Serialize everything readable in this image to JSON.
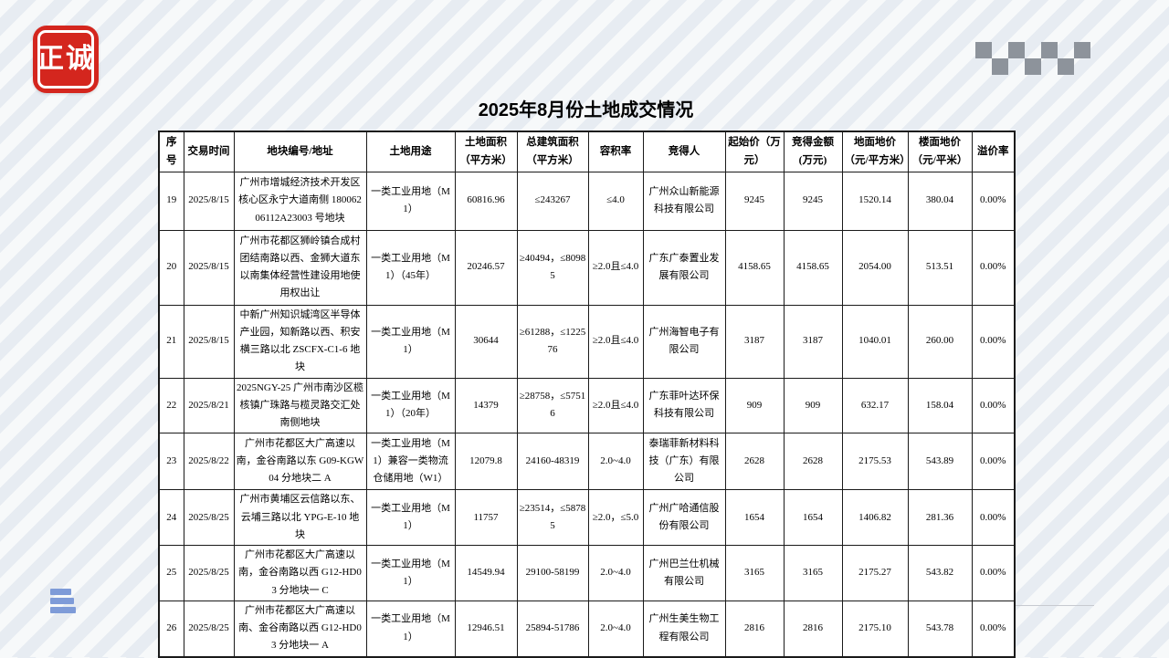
{
  "page": {
    "title": "2025年8月份土地成交情况"
  },
  "logo": {
    "text": "正诚",
    "color": "#d4261e"
  },
  "decor": {
    "checker_icon_color": "#8d939b",
    "hamburger_icon_color": "#7e9bd8"
  },
  "table": {
    "columns": [
      "序号",
      "交易时间",
      "地块编号/地址",
      "土地用途",
      "土地面积（平方米）",
      "总建筑面积（平方米）",
      "容积率",
      "竞得人",
      "起始价（万元）",
      "竞得金额(万元)",
      "地面地价（元/平方米）",
      "楼面地价（元/平米）",
      "溢价率"
    ],
    "rows": [
      [
        "19",
        "2025/8/15",
        "广州市增城经济技术开发区核心区永宁大道南侧 18006206112A23003 号地块",
        "一类工业用地（M1）",
        "60816.96",
        "≤243267",
        "≤4.0",
        "广州众山新能源科技有限公司",
        "9245",
        "9245",
        "1520.14",
        "380.04",
        "0.00%"
      ],
      [
        "20",
        "2025/8/15",
        "广州市花都区狮岭镇合成村团结南路以西、金狮大道东以南集体经营性建设用地使用权出让",
        "一类工业用地（M1）（45年）",
        "20246.57",
        "≥40494，≤80985",
        "≥2.0且≤4.0",
        "广东广泰置业发展有限公司",
        "4158.65",
        "4158.65",
        "2054.00",
        "513.51",
        "0.00%"
      ],
      [
        "21",
        "2025/8/15",
        "中新广州知识城湾区半导体产业园，知新路以西、积安横三路以北 ZSCFX-C1-6 地块",
        "一类工业用地（M1）",
        "30644",
        "≥61288，≤122576",
        "≥2.0且≤4.0",
        "广州海智电子有限公司",
        "3187",
        "3187",
        "1040.01",
        "260.00",
        "0.00%"
      ],
      [
        "22",
        "2025/8/21",
        "2025NGY-25 广州市南沙区榄核镇广珠路与榄灵路交汇处南侧地块",
        "一类工业用地（M1）（20年）",
        "14379",
        "≥28758，≤57516",
        "≥2.0且≤4.0",
        "广东菲叶达环保科技有限公司",
        "909",
        "909",
        "632.17",
        "158.04",
        "0.00%"
      ],
      [
        "23",
        "2025/8/22",
        "广州市花都区大广高速以南，金谷南路以东 G09-KGW04 分地块二 A",
        "一类工业用地（M1）兼容一类物流仓储用地（W1）",
        "12079.8",
        "24160-48319",
        "2.0~4.0",
        "泰瑞菲新材料科技（广东）有限公司",
        "2628",
        "2628",
        "2175.53",
        "543.89",
        "0.00%"
      ],
      [
        "24",
        "2025/8/25",
        "广州市黄埔区云信路以东、云埔三路以北 YPG-E-10 地块",
        "一类工业用地（M1）",
        "11757",
        "≥23514，≤58785",
        "≥2.0，≤5.0",
        "广州广哈通信股份有限公司",
        "1654",
        "1654",
        "1406.82",
        "281.36",
        "0.00%"
      ],
      [
        "25",
        "2025/8/25",
        "广州市花都区大广高速以南，金谷南路以西 G12-HD03 分地块一 C",
        "一类工业用地（M1）",
        "14549.94",
        "29100-58199",
        "2.0~4.0",
        "广州巴兰仕机械有限公司",
        "3165",
        "3165",
        "2175.27",
        "543.82",
        "0.00%"
      ],
      [
        "26",
        "2025/8/25",
        "广州市花都区大广高速以南、金谷南路以西 G12-HD03 分地块一 A",
        "一类工业用地（M1）",
        "12946.51",
        "25894-51786",
        "2.0~4.0",
        "广州生美生物工程有限公司",
        "2816",
        "2816",
        "2175.10",
        "543.78",
        "0.00%"
      ]
    ]
  }
}
